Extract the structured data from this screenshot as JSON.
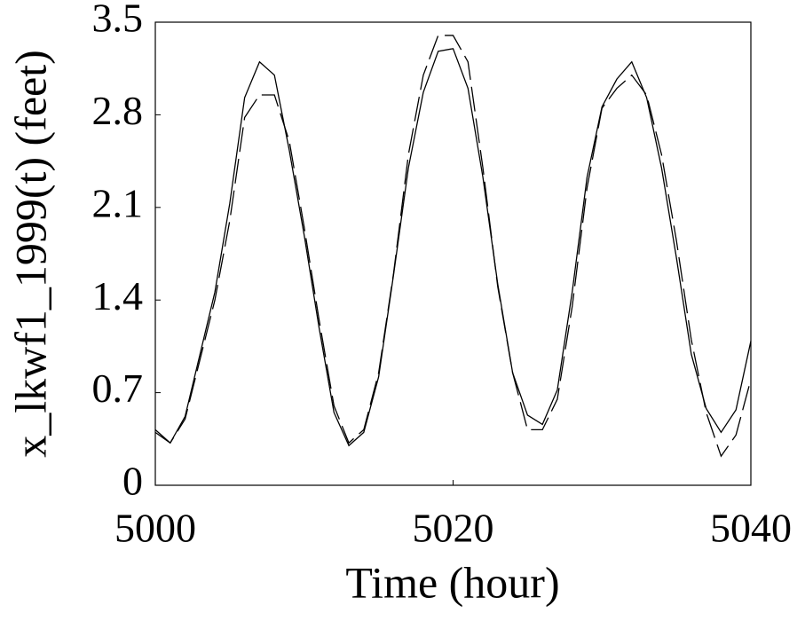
{
  "chart_data": {
    "type": "line",
    "x_label": "Time (hour)",
    "y_label": "x_lkwf1_1999(t) (feet)",
    "x": [
      5000,
      5001,
      5002,
      5003,
      5004,
      5005,
      5006,
      5007,
      5008,
      5009,
      5010,
      5011,
      5012,
      5013,
      5014,
      5015,
      5016,
      5017,
      5018,
      5019,
      5020,
      5021,
      5022,
      5023,
      5024,
      5025,
      5026,
      5027,
      5028,
      5029,
      5030,
      5031,
      5032,
      5033,
      5034,
      5035,
      5036,
      5037,
      5038,
      5039,
      5040
    ],
    "series": [
      {
        "color": "#000000",
        "dash": false,
        "values": [
          0.42,
          0.32,
          0.52,
          0.99,
          1.46,
          2.13,
          2.93,
          3.2,
          3.1,
          2.53,
          1.89,
          1.19,
          0.55,
          0.3,
          0.4,
          0.82,
          1.59,
          2.4,
          2.97,
          3.28,
          3.3,
          3.0,
          2.33,
          1.52,
          0.85,
          0.53,
          0.46,
          0.72,
          1.46,
          2.33,
          2.86,
          3.07,
          3.2,
          2.93,
          2.4,
          1.72,
          0.99,
          0.58,
          0.4,
          0.57,
          1.09
        ]
      },
      {
        "color": "#000000",
        "dash": true,
        "values": [
          0.4,
          0.32,
          0.5,
          0.95,
          1.4,
          2.0,
          2.78,
          2.95,
          2.95,
          2.6,
          1.95,
          1.25,
          0.6,
          0.32,
          0.42,
          0.85,
          1.6,
          2.5,
          3.1,
          3.4,
          3.4,
          3.2,
          2.4,
          1.5,
          0.85,
          0.42,
          0.42,
          0.65,
          1.35,
          2.25,
          2.85,
          3.0,
          3.1,
          2.95,
          2.5,
          1.85,
          1.1,
          0.55,
          0.22,
          0.38,
          0.8
        ]
      }
    ],
    "xlim": [
      5000,
      5040
    ],
    "xticks": [
      5000,
      5020,
      5040
    ],
    "ylim": [
      0,
      3.5
    ],
    "yticks": [
      0,
      0.7,
      1.4,
      2.1,
      2.8,
      3.5
    ],
    "grid": false
  }
}
